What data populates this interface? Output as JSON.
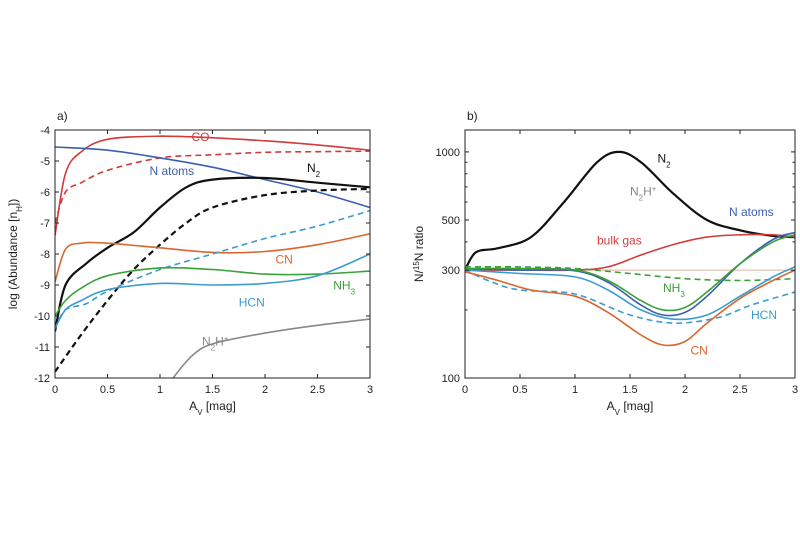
{
  "chart_data": [
    {
      "panel_label": "a)",
      "type": "line",
      "xlabel": "A",
      "xlabel_sub": "V",
      "xlabel_unit": " [mag]",
      "ylabel_pre": "log (Abundance [n",
      "ylabel_sub": "H",
      "ylabel_post": "])",
      "xlim": [
        0,
        3
      ],
      "ylim": [
        -12,
        -4
      ],
      "xticks": [
        "0",
        "0.5",
        "1",
        "1.5",
        "2",
        "2.5",
        "3"
      ],
      "yticks": [
        "-4",
        "-5",
        "-6",
        "-7",
        "-8",
        "-9",
        "-10",
        "-11",
        "-12"
      ],
      "colors": {
        "CO": "#d23b3b",
        "N": "#3a5fb0",
        "N2": "#111111",
        "CN": "#d8662e",
        "NH3": "#3aa03a",
        "HCN": "#3b9bd0",
        "N2H+": "#888888"
      },
      "series": [
        {
          "key": "CO",
          "style": "solid",
          "x": [
            0,
            0.1,
            0.25,
            0.5,
            1,
            1.5,
            2,
            2.5,
            3
          ],
          "y": [
            -7.4,
            -5.4,
            -4.7,
            -4.3,
            -4.2,
            -4.25,
            -4.35,
            -4.48,
            -4.65
          ]
        },
        {
          "key": "CO",
          "style": "dashed",
          "x": [
            0,
            0.1,
            0.25,
            0.5,
            1,
            1.5,
            2,
            2.5,
            3
          ],
          "y": [
            -7.0,
            -6.0,
            -5.7,
            -5.3,
            -4.9,
            -4.8,
            -4.72,
            -4.7,
            -4.68
          ]
        },
        {
          "key": "N",
          "style": "solid",
          "x": [
            0,
            0.5,
            1,
            1.5,
            2,
            2.5,
            3
          ],
          "y": [
            -4.55,
            -4.65,
            -4.9,
            -5.2,
            -5.6,
            -6.0,
            -6.5
          ]
        },
        {
          "key": "N2",
          "style": "solid",
          "x": [
            0,
            0.1,
            0.3,
            0.5,
            0.75,
            1,
            1.25,
            1.5,
            2,
            2.5,
            3
          ],
          "y": [
            -10.5,
            -9.0,
            -8.3,
            -7.8,
            -7.3,
            -6.5,
            -5.85,
            -5.6,
            -5.55,
            -5.7,
            -5.85
          ]
        },
        {
          "key": "N2",
          "style": "dashed",
          "x": [
            0,
            0.25,
            0.5,
            0.75,
            1,
            1.25,
            1.5,
            2,
            2.5,
            3
          ],
          "y": [
            -11.8,
            -10.6,
            -9.5,
            -8.5,
            -7.7,
            -7.0,
            -6.5,
            -6.1,
            -5.95,
            -5.9
          ]
        },
        {
          "key": "CN",
          "style": "solid",
          "x": [
            0,
            0.1,
            0.25,
            0.5,
            1,
            1.5,
            2,
            2.5,
            3
          ],
          "y": [
            -8.9,
            -7.85,
            -7.65,
            -7.65,
            -7.8,
            -7.95,
            -7.92,
            -7.7,
            -7.35
          ]
        },
        {
          "key": "HCN",
          "style": "dashed",
          "x": [
            0,
            0.1,
            0.3,
            0.5,
            1,
            1.5,
            2,
            2.5,
            3
          ],
          "y": [
            -10.4,
            -9.8,
            -9.6,
            -9.2,
            -8.5,
            -8.0,
            -7.5,
            -7.1,
            -6.6
          ]
        },
        {
          "key": "NH3",
          "style": "solid",
          "x": [
            0,
            0.1,
            0.25,
            0.5,
            1,
            1.5,
            2,
            2.5,
            3
          ],
          "y": [
            -10.0,
            -9.5,
            -9.1,
            -8.7,
            -8.45,
            -8.5,
            -8.65,
            -8.65,
            -8.55
          ]
        },
        {
          "key": "HCN",
          "style": "solid",
          "x": [
            0,
            0.1,
            0.25,
            0.5,
            1,
            1.5,
            2,
            2.5,
            3
          ],
          "y": [
            -10.4,
            -9.8,
            -9.5,
            -9.15,
            -8.95,
            -9.0,
            -8.95,
            -8.7,
            -8.0
          ]
        },
        {
          "key": "N2H+",
          "style": "solid",
          "x": [
            1.1,
            1.3,
            1.5,
            2,
            2.5,
            3
          ],
          "y": [
            -12.1,
            -11.3,
            -10.9,
            -10.55,
            -10.3,
            -10.1
          ]
        }
      ],
      "labels": [
        {
          "key": "CO",
          "text": "CO",
          "x": 1.3,
          "y": -4.35
        },
        {
          "key": "N",
          "text": "N atoms",
          "x": 0.9,
          "y": -5.45
        },
        {
          "key": "N2",
          "text": "N",
          "sub": "2",
          "x": 2.4,
          "y": -5.35
        },
        {
          "key": "CN",
          "text": "CN",
          "x": 2.1,
          "y": -8.3
        },
        {
          "key": "NH3",
          "text": "NH",
          "sub": "3",
          "x": 2.65,
          "y": -9.15
        },
        {
          "key": "HCN",
          "text": "HCN",
          "x": 1.75,
          "y": -9.7
        },
        {
          "key": "N2H+",
          "text": "N",
          "sub": "2",
          "post": "H",
          "sup": "+",
          "x": 1.4,
          "y": -10.95
        }
      ]
    },
    {
      "panel_label": "b)",
      "type": "line",
      "xlabel": "A",
      "xlabel_sub": "V",
      "xlabel_unit": " [mag]",
      "ylabel_pre": "N/",
      "ylabel_sup": "15",
      "ylabel_post": "N ratio",
      "xlim": [
        0,
        3
      ],
      "ylim": [
        100,
        1250
      ],
      "scale": "log",
      "xticks": [
        "0",
        "0.5",
        "1",
        "1.5",
        "2",
        "2.5",
        "3"
      ],
      "yticks": [
        {
          "label": "100",
          "value": 100
        },
        {
          "label": "300",
          "value": 300
        },
        {
          "label": "500",
          "value": 500
        },
        {
          "label": "1000",
          "value": 1000
        }
      ],
      "reference_line": 300,
      "colors": {
        "N2": "#111111",
        "N2H+": "#888888",
        "N": "#3a5fb0",
        "bulk": "#d23b3b",
        "NH3": "#3aa03a",
        "CN": "#d8662e",
        "HCN": "#3b9bd0",
        "ref": "#e0b0a0"
      },
      "series": [
        {
          "key": "N2",
          "style": "solid",
          "x": [
            0,
            0.1,
            0.3,
            0.6,
            0.9,
            1.2,
            1.4,
            1.6,
            1.9,
            2.2,
            2.5,
            2.8,
            3
          ],
          "y": [
            300,
            360,
            375,
            420,
            600,
            900,
            1000,
            900,
            650,
            500,
            450,
            425,
            420
          ]
        },
        {
          "key": "bulk",
          "style": "solid",
          "x": [
            0,
            0.5,
            1,
            1.3,
            1.6,
            1.9,
            2.2,
            2.5,
            2.8,
            3
          ],
          "y": [
            300,
            300,
            300,
            310,
            350,
            390,
            420,
            430,
            430,
            420
          ]
        },
        {
          "key": "N",
          "style": "solid",
          "x": [
            0,
            0.5,
            1,
            1.3,
            1.6,
            1.8,
            2.0,
            2.2,
            2.5,
            2.8,
            3
          ],
          "y": [
            305,
            300,
            298,
            265,
            210,
            190,
            195,
            230,
            320,
            410,
            440
          ]
        },
        {
          "key": "NH3",
          "style": "solid",
          "x": [
            0,
            0.5,
            1,
            1.3,
            1.6,
            1.8,
            2.0,
            2.2,
            2.5,
            2.8,
            3
          ],
          "y": [
            305,
            305,
            300,
            270,
            220,
            200,
            205,
            240,
            320,
            400,
            430
          ]
        },
        {
          "key": "NH3",
          "style": "dashed",
          "x": [
            0,
            0.5,
            1,
            1.5,
            2,
            2.5,
            3
          ],
          "y": [
            310,
            310,
            305,
            290,
            275,
            270,
            275
          ]
        },
        {
          "key": "HCN",
          "style": "solid",
          "x": [
            0,
            0.5,
            1,
            1.3,
            1.6,
            1.9,
            2.2,
            2.5,
            2.8,
            3
          ],
          "y": [
            300,
            290,
            280,
            245,
            200,
            182,
            190,
            230,
            280,
            310
          ]
        },
        {
          "key": "HCN",
          "style": "dashed",
          "x": [
            0,
            0.25,
            0.5,
            1,
            1.5,
            1.9,
            2.3,
            2.6,
            3
          ],
          "y": [
            300,
            265,
            245,
            235,
            190,
            175,
            185,
            210,
            240
          ]
        },
        {
          "key": "CN",
          "style": "solid",
          "x": [
            0,
            0.3,
            0.6,
            1,
            1.3,
            1.6,
            1.8,
            2.0,
            2.2,
            2.5,
            2.8,
            3
          ],
          "y": [
            295,
            270,
            245,
            230,
            195,
            155,
            140,
            145,
            175,
            225,
            270,
            300
          ]
        }
      ],
      "labels": [
        {
          "key": "N2",
          "text": "N",
          "sub": "2",
          "x": 1.75,
          "y": 900
        },
        {
          "key": "N2H+",
          "text": "N",
          "sub": "2",
          "post": "H",
          "sup": "+",
          "x": 1.5,
          "y": 640
        },
        {
          "key": "N",
          "text": "N atoms",
          "x": 2.4,
          "y": 520
        },
        {
          "key": "bulk",
          "text": "bulk gas",
          "x": 1.2,
          "y": 390
        },
        {
          "key": "NH3",
          "text": "NH",
          "sub": "3",
          "x": 1.8,
          "y": 240
        },
        {
          "key": "HCN",
          "text": "HCN",
          "x": 2.6,
          "y": 182
        },
        {
          "key": "CN",
          "text": "CN",
          "x": 2.05,
          "y": 127
        }
      ]
    }
  ]
}
